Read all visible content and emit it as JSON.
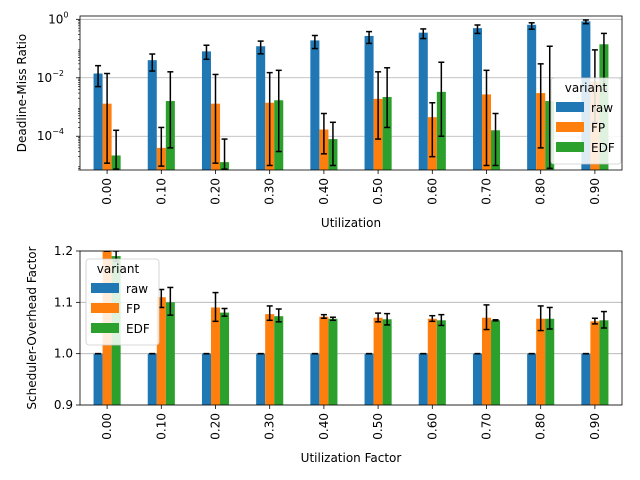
{
  "chart_data": [
    {
      "type": "bar",
      "title": "",
      "xlabel": "Utilization",
      "ylabel": "Deadline-Miss Ratio",
      "yscale": "log",
      "ylim": [
        7e-06,
        1.3
      ],
      "yticks": [
        {
          "value": 0.0001,
          "label": "10",
          "exp": "−4"
        },
        {
          "value": 0.01,
          "label": "10",
          "exp": "−2"
        },
        {
          "value": 1,
          "label": "10",
          "exp": "0"
        }
      ],
      "grid": "horizontal",
      "legend": {
        "title": "variant",
        "placement": "right"
      },
      "categories": [
        "0.00",
        "0.10",
        "0.20",
        "0.30",
        "0.40",
        "0.50",
        "0.60",
        "0.70",
        "0.80",
        "0.90"
      ],
      "series": [
        {
          "name": "raw",
          "color": "#1f77b4",
          "values": [
            0.014,
            0.04,
            0.08,
            0.12,
            0.19,
            0.27,
            0.35,
            0.5,
            0.65,
            0.85
          ],
          "err_low": [
            0.005,
            0.017,
            0.043,
            0.066,
            0.1,
            0.15,
            0.22,
            0.33,
            0.46,
            0.71
          ],
          "err_high": [
            0.026,
            0.065,
            0.13,
            0.18,
            0.28,
            0.38,
            0.47,
            0.64,
            0.76,
            0.95
          ]
        },
        {
          "name": "FP",
          "color": "#ff7f0e",
          "values": [
            0.0013,
            4e-05,
            0.0013,
            0.0014,
            0.00017,
            0.0019,
            0.00045,
            0.0027,
            0.003,
            0.0075
          ],
          "err_low": [
            1.2e-05,
            9.5e-06,
            1.2e-05,
            1e-05,
            2.5e-05,
            8e-05,
            2e-05,
            1e-05,
            4e-05,
            0.0003
          ],
          "err_high": [
            0.014,
            0.0002,
            0.013,
            0.015,
            0.0006,
            0.016,
            0.0014,
            0.018,
            0.03,
            0.09
          ]
        },
        {
          "name": "EDF",
          "color": "#2ca02c",
          "values": [
            2.2e-05,
            0.0016,
            1.3e-05,
            0.0017,
            8e-05,
            0.0022,
            0.0033,
            0.00016,
            0.0016,
            0.14
          ],
          "err_low": [
            7.5e-06,
            4e-05,
            7.5e-06,
            3e-05,
            1e-05,
            0.0002,
            0.0001,
            1e-05,
            8e-06,
            0.004
          ],
          "err_high": [
            0.00016,
            0.016,
            8e-05,
            0.018,
            0.0003,
            0.022,
            0.034,
            0.0006,
            0.12,
            0.33
          ]
        }
      ]
    },
    {
      "type": "bar",
      "title": "",
      "xlabel": "Utilization Factor",
      "ylabel": "Scheduler-Overhead Factor",
      "yscale": "linear",
      "ylim": [
        0.9,
        1.2
      ],
      "yticks": [
        {
          "value": 0.9,
          "label": "0.9"
        },
        {
          "value": 1.0,
          "label": "1.0"
        },
        {
          "value": 1.1,
          "label": "1.1"
        },
        {
          "value": 1.2,
          "label": "1.2"
        }
      ],
      "grid": "horizontal",
      "legend": {
        "title": "variant",
        "placement": "upper-left"
      },
      "categories": [
        "0.00",
        "0.10",
        "0.20",
        "0.30",
        "0.40",
        "0.50",
        "0.60",
        "0.70",
        "0.80",
        "0.90"
      ],
      "series": [
        {
          "name": "raw",
          "color": "#1f77b4",
          "values": [
            1.0,
            1.0,
            1.0,
            1.0,
            1.0,
            1.0,
            1.0,
            1.0,
            1.0,
            1.0
          ],
          "err_low": [
            1.0,
            1.0,
            1.0,
            1.0,
            1.0,
            1.0,
            1.0,
            1.0,
            1.0,
            1.0
          ],
          "err_high": [
            1.0,
            1.0,
            1.0,
            1.0,
            1.0,
            1.0,
            1.0,
            1.0,
            1.0,
            1.0
          ]
        },
        {
          "name": "FP",
          "color": "#ff7f0e",
          "values": [
            1.2,
            1.11,
            1.09,
            1.077,
            1.072,
            1.07,
            1.068,
            1.07,
            1.068,
            1.063
          ],
          "err_low": [
            1.2,
            1.09,
            1.063,
            1.065,
            1.069,
            1.062,
            1.063,
            1.047,
            1.045,
            1.058
          ],
          "err_high": [
            1.2,
            1.125,
            1.119,
            1.093,
            1.076,
            1.079,
            1.074,
            1.095,
            1.093,
            1.069
          ]
        },
        {
          "name": "EDF",
          "color": "#2ca02c",
          "values": [
            1.19,
            1.1,
            1.08,
            1.073,
            1.068,
            1.067,
            1.065,
            1.065,
            1.068,
            1.065
          ],
          "err_low": [
            1.18,
            1.075,
            1.073,
            1.062,
            1.065,
            1.056,
            1.055,
            1.064,
            1.048,
            1.05
          ],
          "err_high": [
            1.2,
            1.129,
            1.088,
            1.087,
            1.071,
            1.078,
            1.076,
            1.066,
            1.09,
            1.082
          ]
        }
      ]
    }
  ]
}
